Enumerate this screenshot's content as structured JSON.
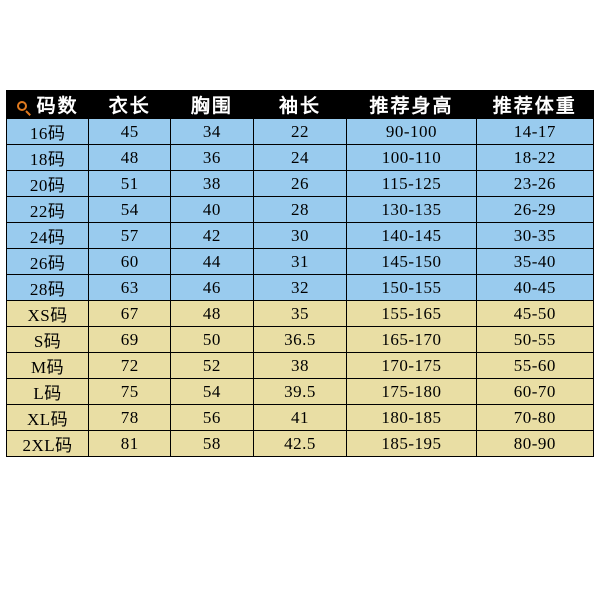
{
  "table": {
    "type": "table",
    "columns": [
      "码数",
      "衣长",
      "胸围",
      "袖长",
      "推荐身高",
      "推荐体重"
    ],
    "column_widths_pct": [
      14,
      14,
      14,
      16,
      22,
      20
    ],
    "header_bg": "#000000",
    "header_fg": "#ffffff",
    "border_color": "#000000",
    "group_colors": {
      "a": "#99cbee",
      "b": "#e9dea4"
    },
    "font_family": "SimSun",
    "cell_fontsize": 17,
    "header_fontsize": 19,
    "header_icon": "search-icon",
    "rows": [
      {
        "group": "a",
        "cells": [
          "16码",
          "45",
          "34",
          "22",
          "90-100",
          "14-17"
        ]
      },
      {
        "group": "a",
        "cells": [
          "18码",
          "48",
          "36",
          "24",
          "100-110",
          "18-22"
        ]
      },
      {
        "group": "a",
        "cells": [
          "20码",
          "51",
          "38",
          "26",
          "115-125",
          "23-26"
        ]
      },
      {
        "group": "a",
        "cells": [
          "22码",
          "54",
          "40",
          "28",
          "130-135",
          "26-29"
        ]
      },
      {
        "group": "a",
        "cells": [
          "24码",
          "57",
          "42",
          "30",
          "140-145",
          "30-35"
        ]
      },
      {
        "group": "a",
        "cells": [
          "26码",
          "60",
          "44",
          "31",
          "145-150",
          "35-40"
        ]
      },
      {
        "group": "a",
        "cells": [
          "28码",
          "63",
          "46",
          "32",
          "150-155",
          "40-45"
        ]
      },
      {
        "group": "b",
        "cells": [
          "XS码",
          "67",
          "48",
          "35",
          "155-165",
          "45-50"
        ]
      },
      {
        "group": "b",
        "cells": [
          "S码",
          "69",
          "50",
          "36.5",
          "165-170",
          "50-55"
        ]
      },
      {
        "group": "b",
        "cells": [
          "M码",
          "72",
          "52",
          "38",
          "170-175",
          "55-60"
        ]
      },
      {
        "group": "b",
        "cells": [
          "L码",
          "75",
          "54",
          "39.5",
          "175-180",
          "60-70"
        ]
      },
      {
        "group": "b",
        "cells": [
          "XL码",
          "78",
          "56",
          "41",
          "180-185",
          "70-80"
        ]
      },
      {
        "group": "b",
        "cells": [
          "2XL码",
          "81",
          "58",
          "42.5",
          "185-195",
          "80-90"
        ]
      }
    ]
  }
}
